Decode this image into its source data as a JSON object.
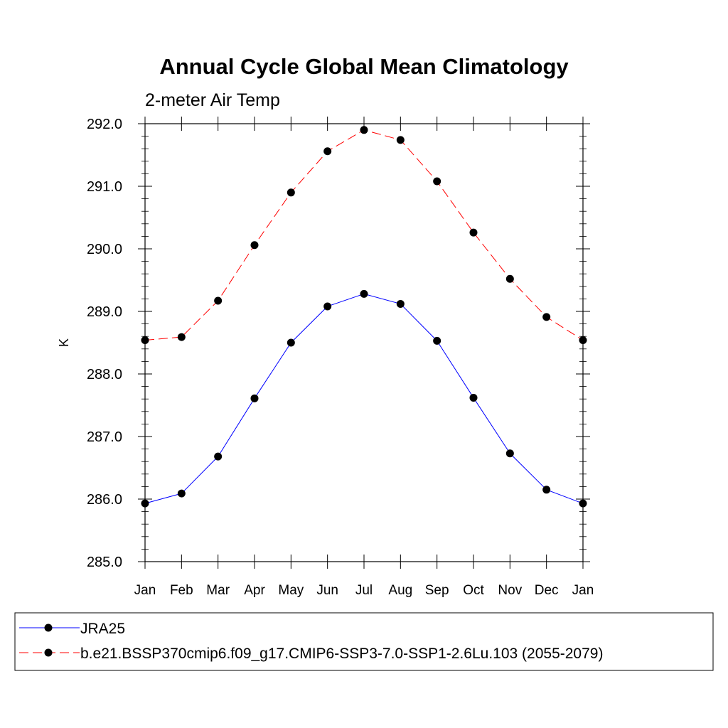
{
  "chart_data": {
    "type": "line",
    "title": "Annual Cycle Global Mean Climatology",
    "subtitle": "2-meter Air Temp",
    "xlabel": "",
    "ylabel": "K",
    "categories": [
      "Jan",
      "Feb",
      "Mar",
      "Apr",
      "May",
      "Jun",
      "Jul",
      "Aug",
      "Sep",
      "Oct",
      "Nov",
      "Dec",
      "Jan"
    ],
    "ylim": [
      285.0,
      292.0
    ],
    "yticks": [
      "285.0",
      "286.0",
      "287.0",
      "288.0",
      "289.0",
      "290.0",
      "291.0",
      "292.0"
    ],
    "grid": false,
    "legend_position": "bottom",
    "series": [
      {
        "name": "JRA25",
        "color": "#0000ff",
        "style": "solid",
        "values": [
          285.93,
          286.09,
          286.68,
          287.61,
          288.5,
          289.08,
          289.28,
          289.12,
          288.53,
          287.62,
          286.73,
          286.15,
          285.93
        ]
      },
      {
        "name": "b.e21.BSSP370cmip6.f09_g17.CMIP6-SSP3-7.0-SSP1-2.6Lu.103 (2055-2079)",
        "color": "#ff0000",
        "style": "dashed",
        "values": [
          288.54,
          288.59,
          289.17,
          290.06,
          290.9,
          291.56,
          291.9,
          291.74,
          291.08,
          290.26,
          289.52,
          288.91,
          288.54
        ]
      }
    ]
  }
}
